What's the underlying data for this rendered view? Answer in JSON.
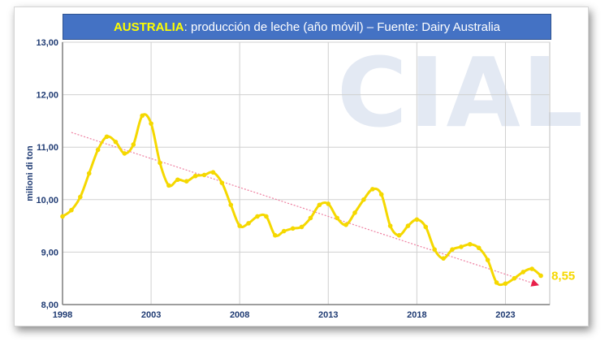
{
  "title": {
    "country": "AUSTRALIA",
    "rest": ": producción de leche (año móvil) – Fuente: Dairy Australia"
  },
  "watermark": "CIAL",
  "colors": {
    "line": "#f5d800",
    "trend": "#ee7fa0",
    "title_bg": "#4472c4",
    "title_accent": "#ffff00",
    "axis_text": "#1f3b73",
    "grid": "#d0d0d0"
  },
  "chart_data": {
    "type": "line",
    "ylabel": "milioni di ton",
    "xlabel": "",
    "xlim": [
      1998,
      2025.5
    ],
    "ylim": [
      8,
      13
    ],
    "grid": true,
    "x_ticks": [
      1998,
      2003,
      2008,
      2013,
      2018,
      2023
    ],
    "x_tick_labels": [
      "1998",
      "2003",
      "2008",
      "2013",
      "2018",
      "2023"
    ],
    "y_ticks": [
      8,
      9,
      10,
      11,
      12,
      13
    ],
    "y_tick_labels": [
      "8,00",
      "9,00",
      "10,00",
      "11,00",
      "12,00",
      "13,00"
    ],
    "series": [
      {
        "x": [
          1998.0,
          1998.5,
          1999.0,
          1999.5,
          2000.0,
          2000.5,
          2001.0,
          2001.5,
          2002.0,
          2002.5,
          2003.0,
          2003.5,
          2004.0,
          2004.5,
          2005.0,
          2005.5,
          2006.0,
          2006.5,
          2007.0,
          2007.5,
          2008.0,
          2008.5,
          2009.0,
          2009.5,
          2010.0,
          2010.5,
          2011.0,
          2011.5,
          2012.0,
          2012.5,
          2013.0,
          2013.5,
          2014.0,
          2014.5,
          2015.0,
          2015.5,
          2016.0,
          2016.5,
          2017.0,
          2017.5,
          2018.0,
          2018.5,
          2019.0,
          2019.5,
          2020.0,
          2020.5,
          2021.0,
          2021.5,
          2022.0,
          2022.5,
          2023.0,
          2023.5,
          2024.0,
          2024.5,
          2025.0
        ],
        "values": [
          9.68,
          9.8,
          10.05,
          10.5,
          10.95,
          11.2,
          11.1,
          10.88,
          11.05,
          11.6,
          11.45,
          10.7,
          10.27,
          10.38,
          10.35,
          10.45,
          10.47,
          10.52,
          10.32,
          9.9,
          9.5,
          9.55,
          9.68,
          9.68,
          9.32,
          9.4,
          9.45,
          9.48,
          9.65,
          9.9,
          9.92,
          9.65,
          9.52,
          9.75,
          10.0,
          10.2,
          10.1,
          9.5,
          9.32,
          9.5,
          9.62,
          9.48,
          9.05,
          8.88,
          9.05,
          9.1,
          9.15,
          9.08,
          8.85,
          8.42,
          8.4,
          8.5,
          8.62,
          8.68,
          8.55
        ]
      }
    ],
    "trend": {
      "x": [
        1998.5,
        2024.8
      ],
      "values": [
        11.28,
        8.38
      ]
    },
    "annotation": {
      "x": 2025.0,
      "value": 8.55,
      "label": "8,55"
    }
  }
}
